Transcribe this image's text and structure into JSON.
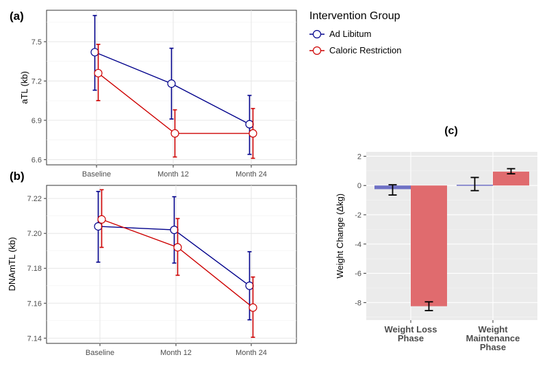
{
  "legend": {
    "title": "Intervention Group",
    "entries": [
      {
        "label": "Ad Libitum",
        "color": "#00008b"
      },
      {
        "label": "Caloric Restriction",
        "color": "#cd0000"
      }
    ]
  },
  "chart_data": [
    {
      "panel": "(a)",
      "type": "line",
      "ylabel": "aTL (kb)",
      "categories": [
        "Baseline",
        "Month 12",
        "Month 24"
      ],
      "ylim": [
        6.56,
        7.74
      ],
      "yticks": [
        "6.6",
        "6.9",
        "7.2",
        "7.5"
      ],
      "series": [
        {
          "name": "Ad Libitum",
          "color": "#00008b",
          "values": [
            7.42,
            7.18,
            6.87
          ],
          "lower": [
            7.13,
            6.91,
            6.64
          ],
          "upper": [
            7.7,
            7.45,
            7.09
          ]
        },
        {
          "name": "Caloric Restriction",
          "color": "#cd0000",
          "values": [
            7.26,
            6.8,
            6.8
          ],
          "lower": [
            7.05,
            6.62,
            6.61
          ],
          "upper": [
            7.48,
            6.98,
            6.99
          ]
        }
      ]
    },
    {
      "panel": "(b)",
      "type": "line",
      "ylabel": "DNAmTL (kb)",
      "categories": [
        "Baseline",
        "Month 12",
        "Month 24"
      ],
      "ylim": [
        7.137,
        7.2275
      ],
      "yticks": [
        "7.14",
        "7.16",
        "7.18",
        "7.20",
        "7.22"
      ],
      "series": [
        {
          "name": "Ad Libitum",
          "color": "#00008b",
          "values": [
            7.204,
            7.202,
            7.17
          ],
          "lower": [
            7.1835,
            7.183,
            7.1505
          ],
          "upper": [
            7.224,
            7.221,
            7.1895
          ]
        },
        {
          "name": "Caloric Restriction",
          "color": "#cd0000",
          "values": [
            7.208,
            7.192,
            7.1575
          ],
          "lower": [
            7.192,
            7.176,
            7.1405
          ],
          "upper": [
            7.225,
            7.2085,
            7.175
          ]
        }
      ]
    },
    {
      "panel": "(c)",
      "type": "bar",
      "ylabel": "Weight Change (Δkg)",
      "categories": [
        "Weight Loss Phase",
        "Weight Maintenance Phase"
      ],
      "category_lines": [
        [
          "Weight Loss",
          "Phase"
        ],
        [
          "Weight",
          "Maintenance",
          "Phase"
        ]
      ],
      "ylim": [
        -9.2,
        2.3
      ],
      "yticks": [
        "2",
        "0",
        "-2",
        "-4",
        "-6",
        "-8"
      ],
      "series": [
        {
          "name": "Ad Libitum",
          "color": "#6e70c4",
          "values": [
            -0.25,
            0.05
          ],
          "lower": [
            -0.65,
            -0.35
          ],
          "upper": [
            0.05,
            0.55
          ]
        },
        {
          "name": "Caloric Restriction",
          "color": "#e06b6e",
          "values": [
            -8.25,
            0.95
          ],
          "lower": [
            -8.55,
            0.8
          ],
          "upper": [
            -7.95,
            1.15
          ]
        }
      ]
    }
  ]
}
